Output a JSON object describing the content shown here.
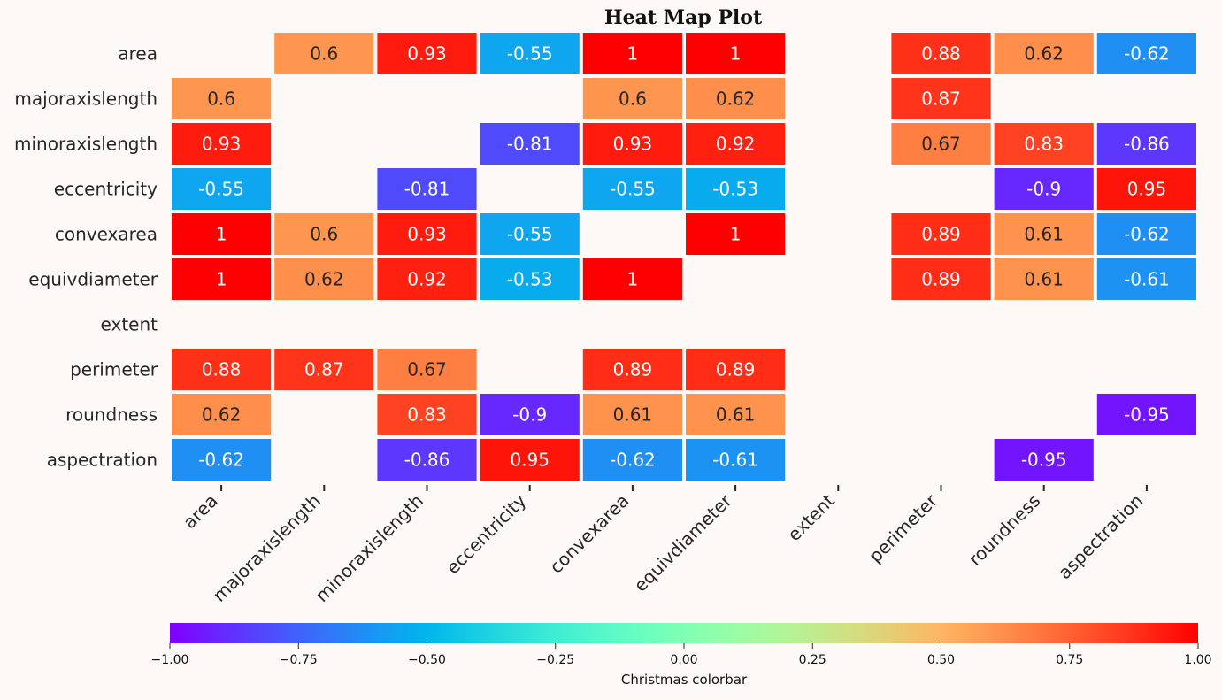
{
  "chart_data": {
    "type": "heatmap",
    "title": "Heat Map Plot",
    "row_labels": [
      "area",
      "majoraxislength",
      "minoraxislength",
      "eccentricity",
      "convexarea",
      "equivdiameter",
      "extent",
      "perimeter",
      "roundness",
      "aspectration"
    ],
    "col_labels": [
      "area",
      "majoraxislength",
      "minoraxislength",
      "eccentricity",
      "convexarea",
      "equivdiameter",
      "extent",
      "perimeter",
      "roundness",
      "aspectration"
    ],
    "values": [
      [
        null,
        0.6,
        0.93,
        -0.55,
        1,
        1,
        null,
        0.88,
        0.62,
        -0.62
      ],
      [
        0.6,
        null,
        null,
        null,
        0.6,
        0.62,
        null,
        0.87,
        null,
        null
      ],
      [
        0.93,
        null,
        null,
        -0.81,
        0.93,
        0.92,
        null,
        0.67,
        0.83,
        -0.86
      ],
      [
        -0.55,
        null,
        -0.81,
        null,
        -0.55,
        -0.53,
        null,
        null,
        -0.9,
        0.95
      ],
      [
        1,
        0.6,
        0.93,
        -0.55,
        null,
        1,
        null,
        0.89,
        0.61,
        -0.62
      ],
      [
        1,
        0.62,
        0.92,
        -0.53,
        1,
        null,
        null,
        0.89,
        0.61,
        -0.61
      ],
      [
        null,
        null,
        null,
        null,
        null,
        null,
        null,
        null,
        null,
        null
      ],
      [
        0.88,
        0.87,
        0.67,
        null,
        0.89,
        0.89,
        null,
        null,
        null,
        null
      ],
      [
        0.62,
        null,
        0.83,
        -0.9,
        0.61,
        0.61,
        null,
        null,
        null,
        -0.95
      ],
      [
        -0.62,
        null,
        -0.86,
        0.95,
        -0.62,
        -0.61,
        null,
        null,
        -0.95,
        null
      ]
    ],
    "colormap": "rainbow",
    "vmin": -1.0,
    "vmax": 1.0,
    "colorbar": {
      "label": "Christmas colorbar",
      "orientation": "horizontal",
      "ticks": [
        -1.0,
        -0.75,
        -0.5,
        -0.25,
        0.0,
        0.25,
        0.5,
        0.75,
        1.0
      ],
      "tick_labels": [
        "−1.00",
        "−0.75",
        "−0.50",
        "−0.25",
        "0.00",
        "0.25",
        "0.50",
        "0.75",
        "1.00"
      ]
    },
    "annotations": true,
    "grid": false
  },
  "colors": {
    "background": "#fdf9f7",
    "cell_border": "#ffffff",
    "text_dark": "#262626",
    "text_light": "#ffffff"
  }
}
